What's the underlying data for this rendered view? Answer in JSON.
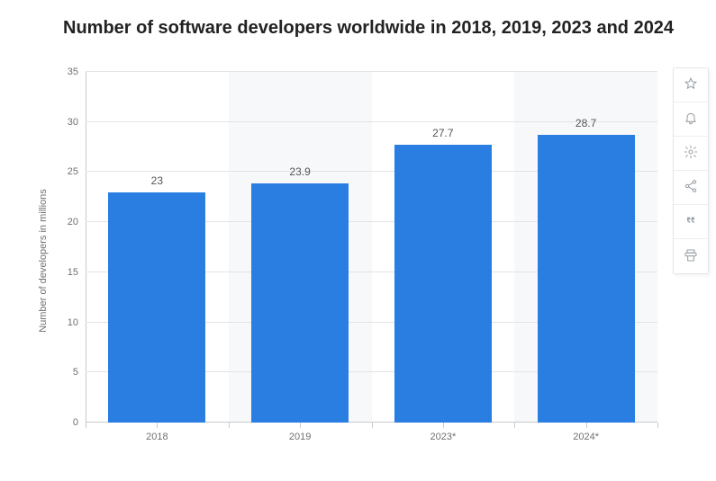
{
  "chart": {
    "type": "bar",
    "title": "Number of software developers worldwide in 2018, 2019, 2023 and 2024",
    "title_fontsize": 20,
    "title_color": "#222222",
    "y_axis_title": "Number of developers in millions",
    "axis_label_fontsize": 11,
    "axis_label_color": "#707070",
    "bar_label_fontsize": 12,
    "bar_label_color": "#555555",
    "categories": [
      "2018",
      "2019",
      "2023*",
      "2024*"
    ],
    "values": [
      23,
      23.9,
      27.7,
      28.7
    ],
    "value_labels": [
      "23",
      "23.9",
      "27.7",
      "28.7"
    ],
    "bar_color": "#2a7de1",
    "ylim": [
      0,
      35
    ],
    "ytick_step": 5,
    "y_ticks": [
      0,
      5,
      10,
      15,
      20,
      25,
      30,
      35
    ],
    "background_color": "#ffffff",
    "stripe_color": "#f7f8f9",
    "grid_color": "#e2e4e7",
    "axis_line_color": "#c8cbce",
    "bar_width_ratio": 0.68
  },
  "toolbar": {
    "buttons": [
      {
        "name": "favorite",
        "icon": "star"
      },
      {
        "name": "alerts",
        "icon": "bell"
      },
      {
        "name": "settings",
        "icon": "gear"
      },
      {
        "name": "share",
        "icon": "share"
      },
      {
        "name": "cite",
        "icon": "quote"
      },
      {
        "name": "print",
        "icon": "print"
      }
    ]
  }
}
